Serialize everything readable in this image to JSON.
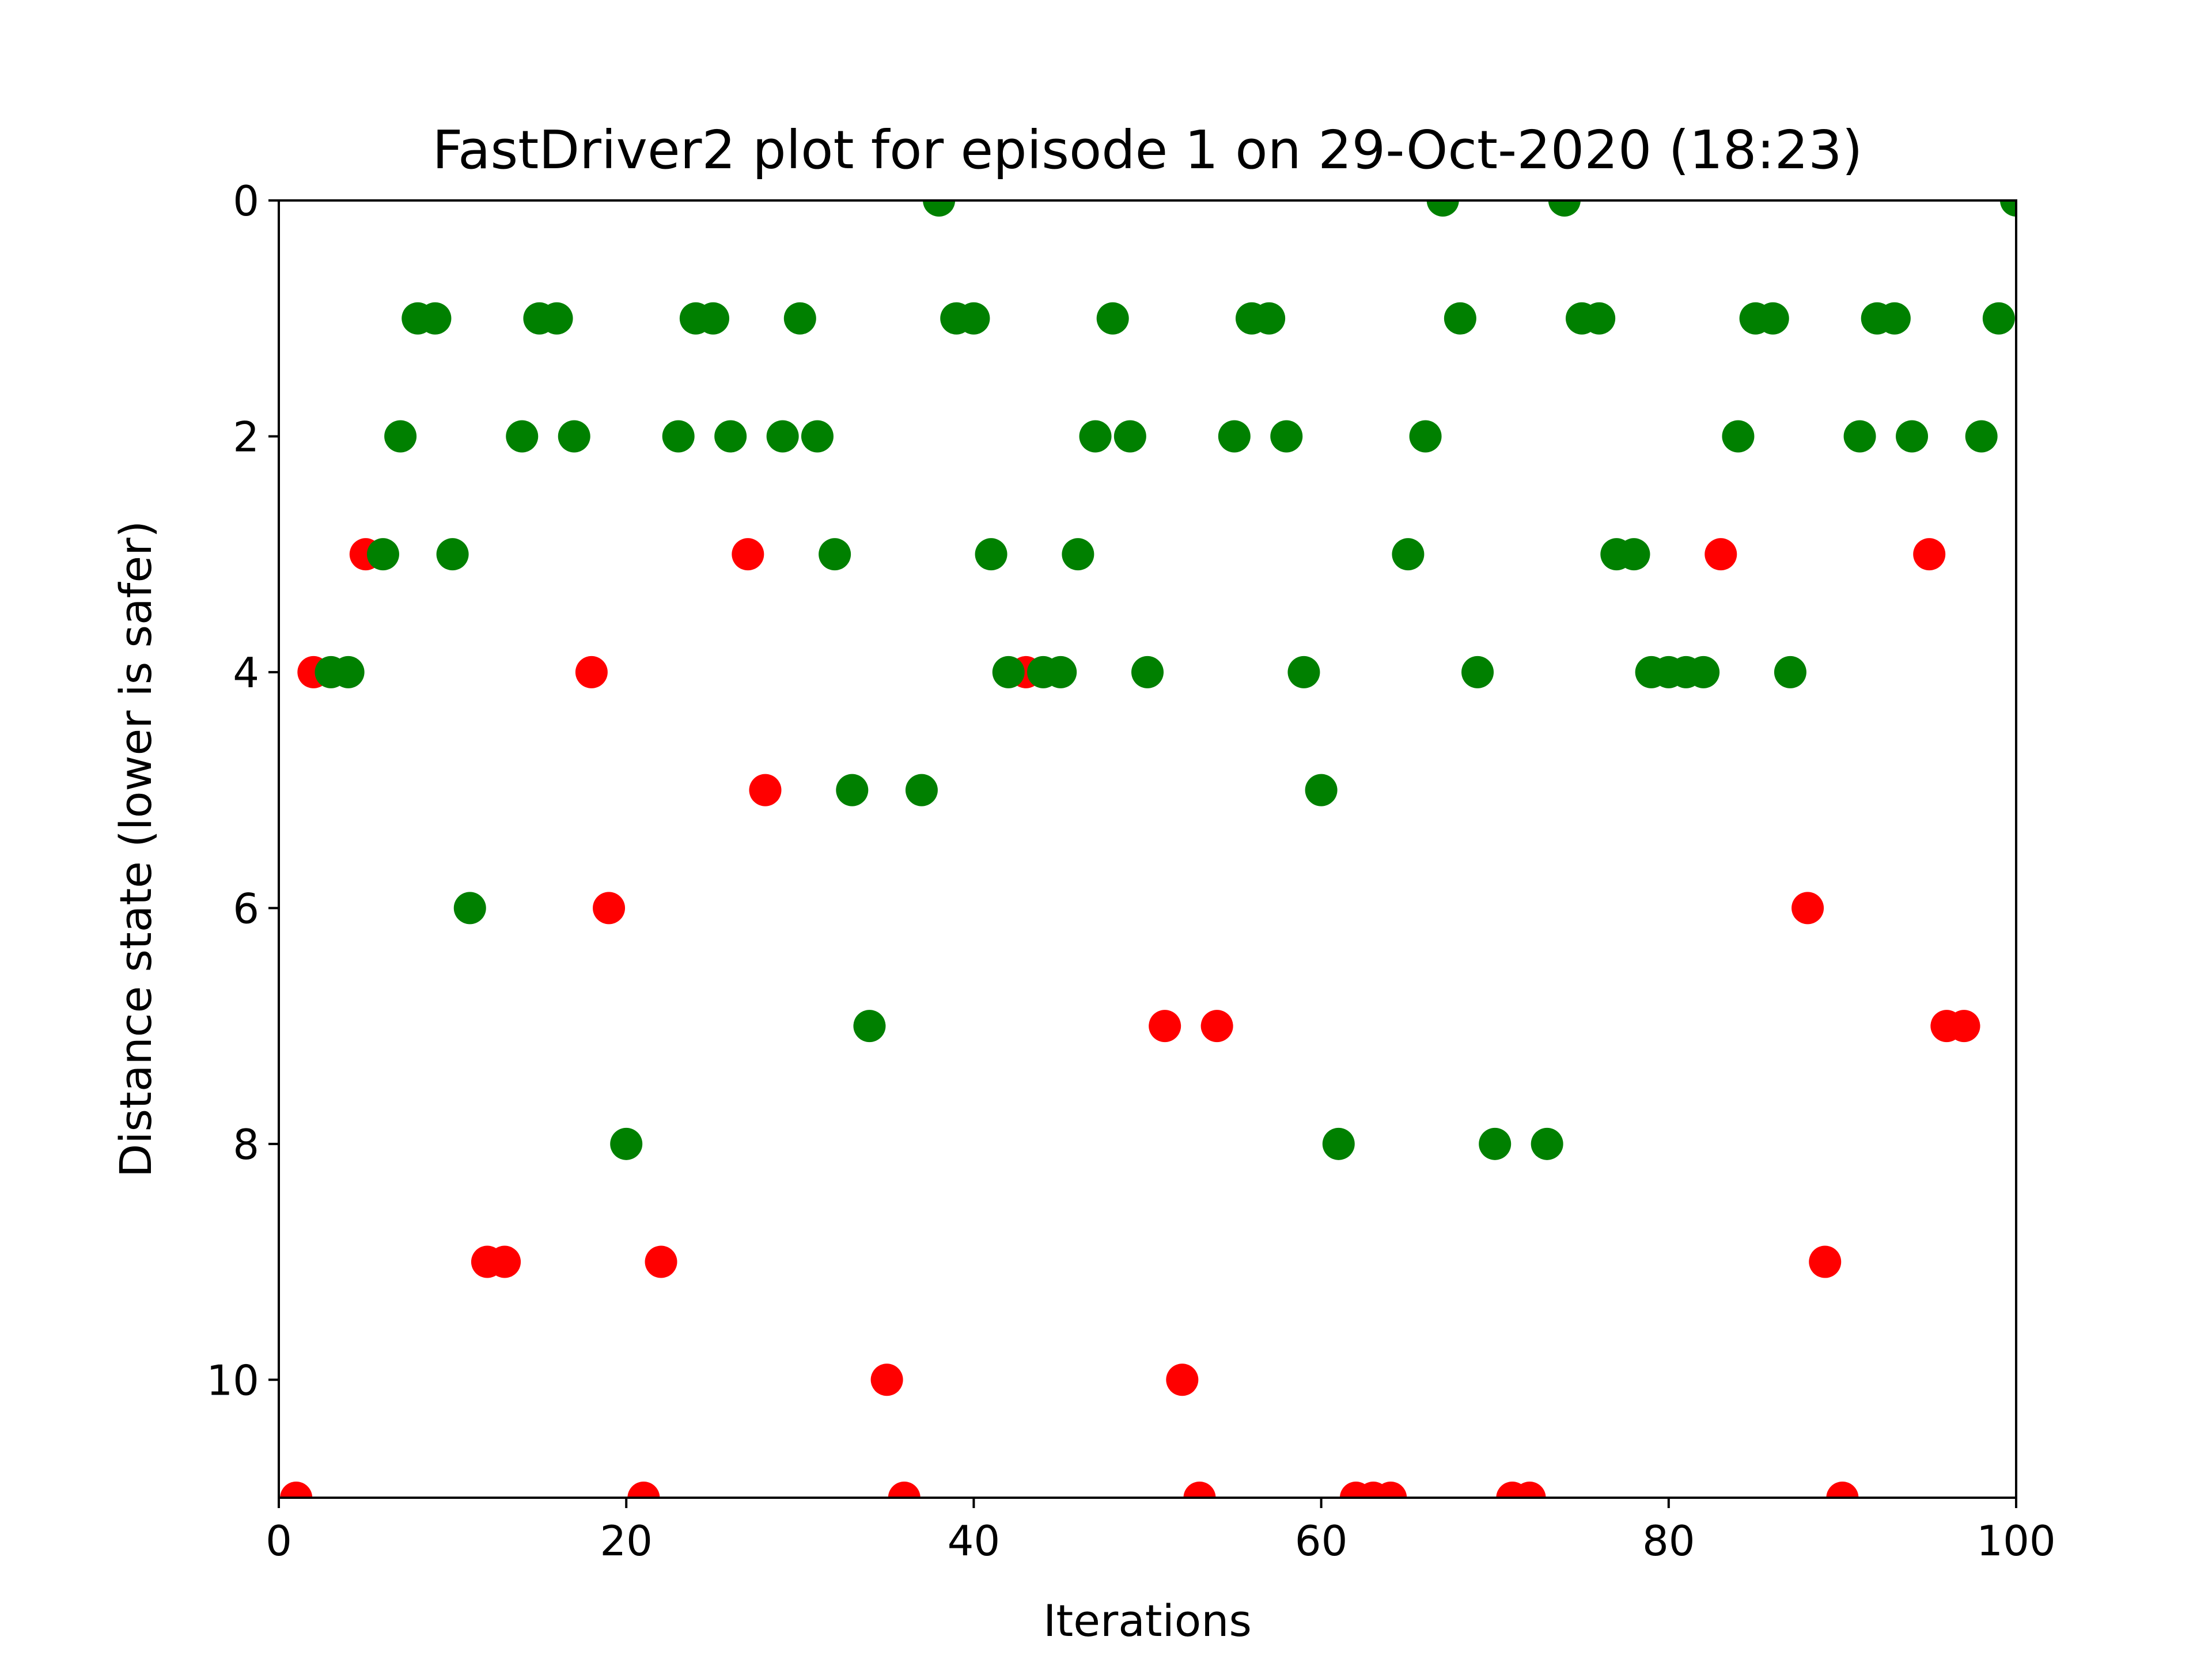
{
  "chart_data": {
    "type": "scatter",
    "title": "FastDriver2 plot for episode 1 on 29-Oct-2020 (18:23)",
    "xlabel": "Iterations",
    "ylabel": "Distance state (lower is safer)",
    "xlim": [
      0,
      100
    ],
    "ylim": [
      11,
      0
    ],
    "y_inverted": true,
    "xticks": [
      0,
      20,
      40,
      60,
      80,
      100
    ],
    "yticks": [
      0,
      2,
      4,
      6,
      8,
      10
    ],
    "xtick_labels": [
      "0",
      "20",
      "40",
      "60",
      "80",
      "100"
    ],
    "ytick_labels": [
      "0",
      "2",
      "4",
      "6",
      "8",
      "10"
    ],
    "grid": false,
    "colors": {
      "safe": "#008000",
      "unsafe": "#ff0000"
    },
    "series": [
      {
        "name": "unsafe",
        "color": "#ff0000",
        "points": [
          [
            1,
            11
          ],
          [
            2,
            4
          ],
          [
            5,
            3
          ],
          [
            12,
            9
          ],
          [
            13,
            9
          ],
          [
            18,
            4
          ],
          [
            19,
            6
          ],
          [
            21,
            11
          ],
          [
            22,
            9
          ],
          [
            27,
            3
          ],
          [
            28,
            5
          ],
          [
            35,
            10
          ],
          [
            36,
            11
          ],
          [
            43,
            4
          ],
          [
            51,
            7
          ],
          [
            52,
            10
          ],
          [
            53,
            11
          ],
          [
            54,
            7
          ],
          [
            62,
            11
          ],
          [
            63,
            11
          ],
          [
            64,
            11
          ],
          [
            71,
            11
          ],
          [
            72,
            11
          ],
          [
            83,
            3
          ],
          [
            88,
            6
          ],
          [
            89,
            9
          ],
          [
            90,
            11
          ],
          [
            95,
            3
          ],
          [
            96,
            7
          ],
          [
            97,
            7
          ]
        ]
      },
      {
        "name": "safe",
        "color": "#008000",
        "points": [
          [
            3,
            4
          ],
          [
            4,
            4
          ],
          [
            6,
            3
          ],
          [
            7,
            2
          ],
          [
            8,
            1
          ],
          [
            9,
            1
          ],
          [
            10,
            3
          ],
          [
            11,
            6
          ],
          [
            14,
            2
          ],
          [
            15,
            1
          ],
          [
            16,
            1
          ],
          [
            17,
            2
          ],
          [
            20,
            8
          ],
          [
            23,
            2
          ],
          [
            24,
            1
          ],
          [
            25,
            1
          ],
          [
            26,
            2
          ],
          [
            29,
            2
          ],
          [
            30,
            1
          ],
          [
            31,
            2
          ],
          [
            32,
            3
          ],
          [
            33,
            5
          ],
          [
            34,
            7
          ],
          [
            37,
            5
          ],
          [
            38,
            0
          ],
          [
            39,
            1
          ],
          [
            40,
            1
          ],
          [
            41,
            3
          ],
          [
            42,
            4
          ],
          [
            44,
            4
          ],
          [
            45,
            4
          ],
          [
            46,
            3
          ],
          [
            47,
            2
          ],
          [
            48,
            1
          ],
          [
            49,
            2
          ],
          [
            50,
            4
          ],
          [
            55,
            2
          ],
          [
            56,
            1
          ],
          [
            57,
            1
          ],
          [
            58,
            2
          ],
          [
            59,
            4
          ],
          [
            60,
            5
          ],
          [
            61,
            8
          ],
          [
            65,
            3
          ],
          [
            66,
            2
          ],
          [
            67,
            0
          ],
          [
            68,
            1
          ],
          [
            69,
            4
          ],
          [
            70,
            8
          ],
          [
            73,
            8
          ],
          [
            74,
            0
          ],
          [
            75,
            1
          ],
          [
            76,
            1
          ],
          [
            77,
            3
          ],
          [
            78,
            3
          ],
          [
            79,
            4
          ],
          [
            80,
            4
          ],
          [
            81,
            4
          ],
          [
            82,
            4
          ],
          [
            84,
            2
          ],
          [
            85,
            1
          ],
          [
            86,
            1
          ],
          [
            87,
            4
          ],
          [
            91,
            2
          ],
          [
            92,
            1
          ],
          [
            93,
            1
          ],
          [
            94,
            2
          ],
          [
            98,
            2
          ],
          [
            99,
            1
          ],
          [
            100,
            0
          ]
        ]
      }
    ]
  }
}
